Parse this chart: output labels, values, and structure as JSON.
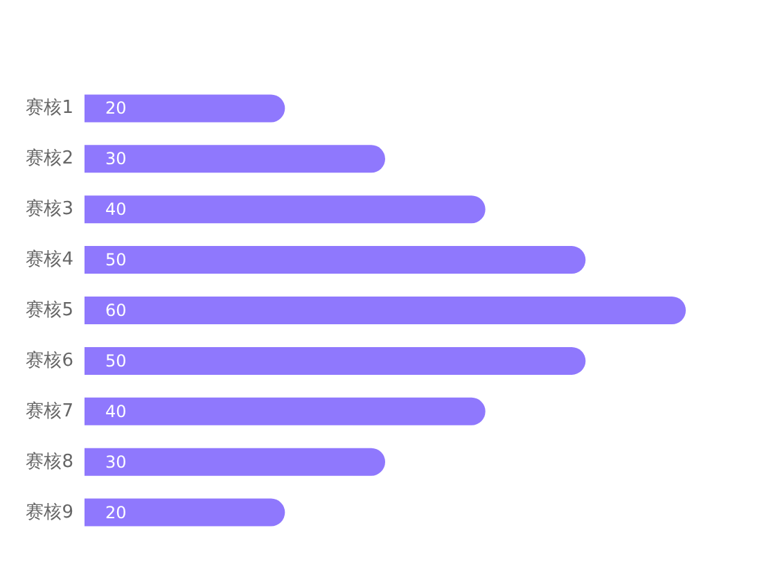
{
  "chart_data": {
    "type": "bar",
    "orientation": "horizontal",
    "categories": [
      "赛核1",
      "赛核2",
      "赛核3",
      "赛核4",
      "赛核5",
      "赛核6",
      "赛核7",
      "赛核8",
      "赛核9"
    ],
    "values": [
      20,
      30,
      40,
      50,
      60,
      50,
      40,
      30,
      20
    ],
    "color": "#8f78fd",
    "data_labels": true
  }
}
